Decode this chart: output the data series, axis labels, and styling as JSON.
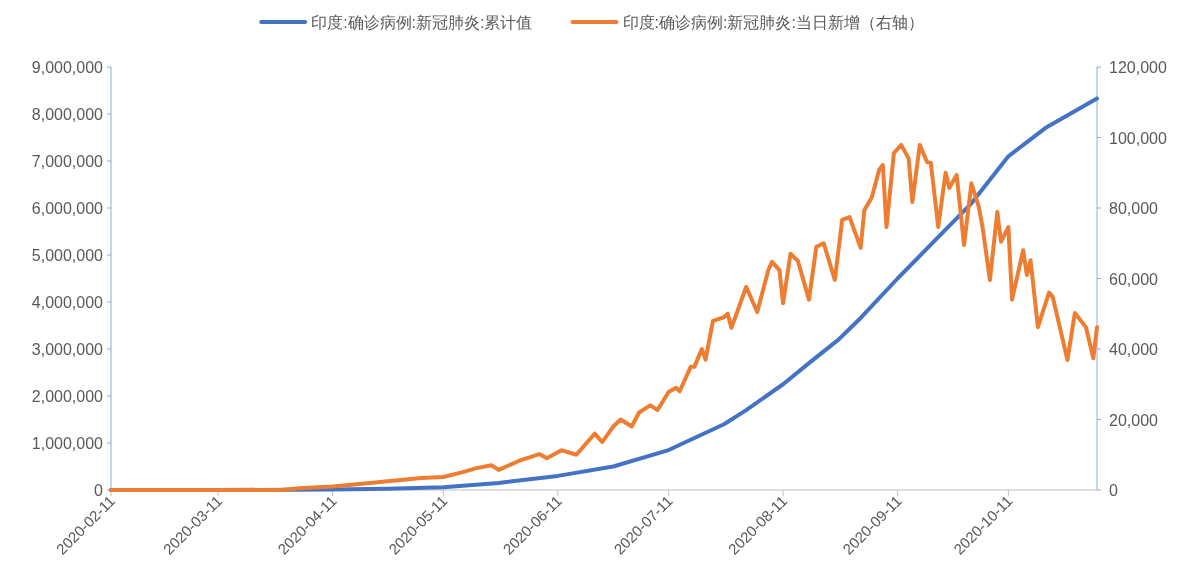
{
  "chart_data": {
    "type": "line",
    "legend": "top",
    "marker": "none",
    "line_style": "solid",
    "grid": false,
    "xlim": [
      "2020-02-11",
      "2020-11-04"
    ],
    "xticks": [
      "2020-02-11",
      "2020-03-11",
      "2020-04-11",
      "2020-05-11",
      "2020-06-11",
      "2020-07-11",
      "2020-08-11",
      "2020-09-11",
      "2020-10-11"
    ],
    "ylim": [
      0,
      9000000
    ],
    "yticks": [
      {
        "value": 0,
        "label": "0"
      },
      {
        "value": 1000000,
        "label": "1,000,000"
      },
      {
        "value": 2000000,
        "label": "2,000,000"
      },
      {
        "value": 3000000,
        "label": "3,000,000"
      },
      {
        "value": 4000000,
        "label": "4,000,000"
      },
      {
        "value": 5000000,
        "label": "5,000,000"
      },
      {
        "value": 6000000,
        "label": "6,000,000"
      },
      {
        "value": 7000000,
        "label": "7,000,000"
      },
      {
        "value": 8000000,
        "label": "8,000,000"
      },
      {
        "value": 9000000,
        "label": "9,000,000"
      }
    ],
    "y2lim": [
      0,
      120000
    ],
    "y2ticks": [
      {
        "value": 0,
        "label": "0"
      },
      {
        "value": 20000,
        "label": "20,000"
      },
      {
        "value": 40000,
        "label": "40,000"
      },
      {
        "value": 60000,
        "label": "60,000"
      },
      {
        "value": 80000,
        "label": "80,000"
      },
      {
        "value": 100000,
        "label": "100,000"
      },
      {
        "value": 120000,
        "label": "120,000"
      }
    ],
    "series": [
      {
        "name": "印度:确诊病例:新冠肺炎:累计值",
        "color": "#4472c4",
        "x": [
          "2020-02-11",
          "2020-03-11",
          "2020-04-11",
          "2020-04-26",
          "2020-05-11",
          "2020-05-26",
          "2020-06-11",
          "2020-06-26",
          "2020-07-11",
          "2020-07-26",
          "2020-08-01",
          "2020-08-11",
          "2020-08-18",
          "2020-08-26",
          "2020-09-01",
          "2020-09-11",
          "2020-09-21",
          "2020-10-01",
          "2020-10-11",
          "2020-10-21",
          "2020-11-04"
        ],
        "values": [
          0,
          0,
          8000,
          26000,
          60000,
          150000,
          300000,
          500000,
          850000,
          1400000,
          1700000,
          2250000,
          2700000,
          3200000,
          3660000,
          4500000,
          5300000,
          6100000,
          7100000,
          7700000,
          8330000
        ]
      },
      {
        "name": "印度:确诊病例:新冠肺炎:当日新增（右轴）",
        "color": "#ed7d31",
        "axis": "y2",
        "x": [
          "2020-02-11",
          "2020-03-28",
          "2020-04-02",
          "2020-04-11",
          "2020-04-19",
          "2020-05-05",
          "2020-05-11",
          "2020-05-16",
          "2020-05-20",
          "2020-05-24",
          "2020-05-26",
          "2020-06-01",
          "2020-06-06",
          "2020-06-08",
          "2020-06-12",
          "2020-06-16",
          "2020-06-21",
          "2020-06-23",
          "2020-06-26",
          "2020-06-28",
          "2020-07-01",
          "2020-07-03",
          "2020-07-06",
          "2020-07-08",
          "2020-07-11",
          "2020-07-13",
          "2020-07-14",
          "2020-07-17",
          "2020-07-18",
          "2020-07-20",
          "2020-07-21",
          "2020-07-23",
          "2020-07-26",
          "2020-07-27",
          "2020-07-28",
          "2020-08-01",
          "2020-08-04",
          "2020-08-07",
          "2020-08-08",
          "2020-08-10",
          "2020-08-11",
          "2020-08-13",
          "2020-08-15",
          "2020-08-18",
          "2020-08-20",
          "2020-08-22",
          "2020-08-25",
          "2020-08-27",
          "2020-08-29",
          "2020-09-01",
          "2020-09-02",
          "2020-09-04",
          "2020-09-06",
          "2020-09-07",
          "2020-09-08",
          "2020-09-10",
          "2020-09-12",
          "2020-09-14",
          "2020-09-15",
          "2020-09-17",
          "2020-09-19",
          "2020-09-20",
          "2020-09-22",
          "2020-09-24",
          "2020-09-25",
          "2020-09-27",
          "2020-09-29",
          "2020-10-01",
          "2020-10-03",
          "2020-10-04",
          "2020-10-06",
          "2020-10-08",
          "2020-10-09",
          "2020-10-11",
          "2020-10-12",
          "2020-10-15",
          "2020-10-16",
          "2020-10-17",
          "2020-10-19",
          "2020-10-22",
          "2020-10-23",
          "2020-10-27",
          "2020-10-29",
          "2020-11-01",
          "2020-11-03",
          "2020-11-04"
        ],
        "values": [
          0,
          0,
          500,
          1000,
          1800,
          3400,
          3700,
          5000,
          6200,
          7000,
          5700,
          8500,
          10200,
          9000,
          11300,
          10000,
          16000,
          13600,
          18000,
          20000,
          18000,
          22000,
          24000,
          22700,
          27800,
          29000,
          28000,
          35000,
          35000,
          40000,
          37000,
          48000,
          49000,
          50000,
          46000,
          57600,
          50500,
          62400,
          64700,
          62400,
          53000,
          67000,
          65000,
          54000,
          69000,
          70000,
          59600,
          76600,
          77400,
          68700,
          79400,
          83000,
          90800,
          92200,
          74600,
          95600,
          97900,
          94000,
          81700,
          97900,
          93000,
          92800,
          74600,
          90000,
          85700,
          89400,
          69500,
          87000,
          80300,
          74600,
          59600,
          78900,
          70400,
          74600,
          54000,
          68000,
          61000,
          65200,
          46200,
          56000,
          54800,
          36900,
          50200,
          46200,
          37400,
          46200
        ]
      }
    ]
  }
}
